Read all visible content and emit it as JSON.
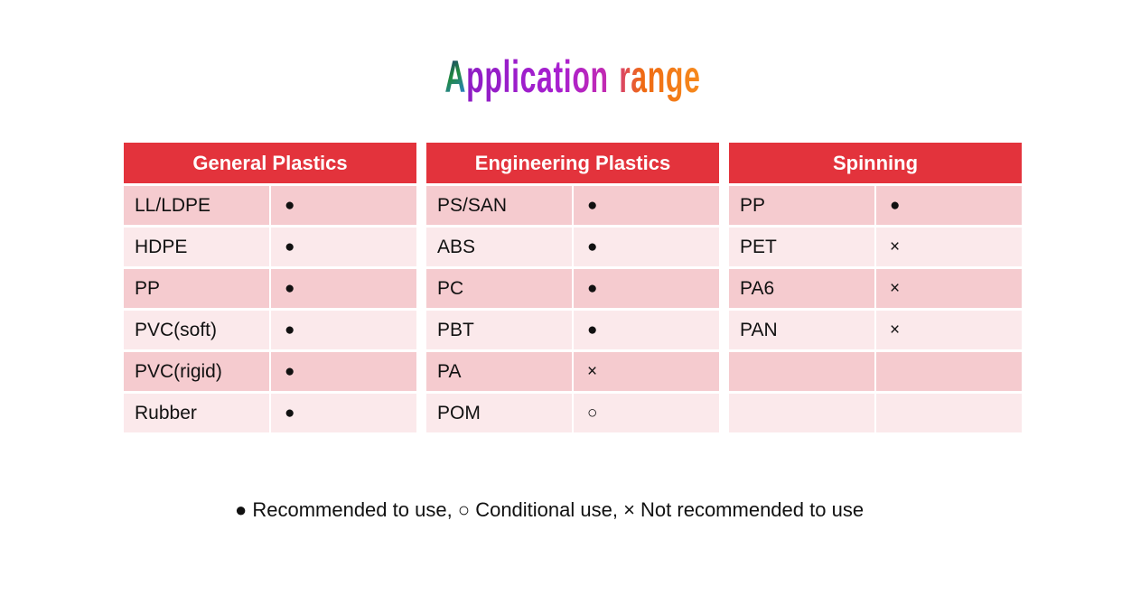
{
  "title": {
    "part1": "A",
    "part2": "pplication",
    "part3": "range"
  },
  "colors": {
    "header_red": "#e3333c",
    "row_dark_pink": "#f5cbcf",
    "row_light_pink": "#fbe9eb",
    "title_green_blue": "#1f8a3d",
    "title_purple": "#a81fd0",
    "title_orange": "#ef6a14"
  },
  "symbols": {
    "recommended": "●",
    "conditional": "○",
    "not_recommended": "×"
  },
  "table": {
    "groups": [
      {
        "header": "General Plastics",
        "rows": [
          {
            "name": "LL/LDPE",
            "symbol": "●"
          },
          {
            "name": "HDPE",
            "symbol": "●"
          },
          {
            "name": "PP",
            "symbol": "●"
          },
          {
            "name": "PVC(soft)",
            "symbol": "●"
          },
          {
            "name": "PVC(rigid)",
            "symbol": "●"
          },
          {
            "name": "Rubber",
            "symbol": "●"
          }
        ]
      },
      {
        "header": "Engineering Plastics",
        "rows": [
          {
            "name": "PS/SAN",
            "symbol": "●"
          },
          {
            "name": "ABS",
            "symbol": "●"
          },
          {
            "name": "PC",
            "symbol": "●"
          },
          {
            "name": "PBT",
            "symbol": "●"
          },
          {
            "name": "PA",
            "symbol": "×"
          },
          {
            "name": "POM",
            "symbol": "○"
          }
        ]
      },
      {
        "header": "Spinning",
        "rows": [
          {
            "name": "PP",
            "symbol": "●"
          },
          {
            "name": "PET",
            "symbol": "×"
          },
          {
            "name": "PA6",
            "symbol": "×"
          },
          {
            "name": "PAN",
            "symbol": "×"
          },
          {
            "name": "",
            "symbol": ""
          },
          {
            "name": "",
            "symbol": ""
          }
        ]
      }
    ]
  },
  "legend": {
    "text": "● Recommended to use, ○ Conditional use, × Not recommended to use"
  }
}
